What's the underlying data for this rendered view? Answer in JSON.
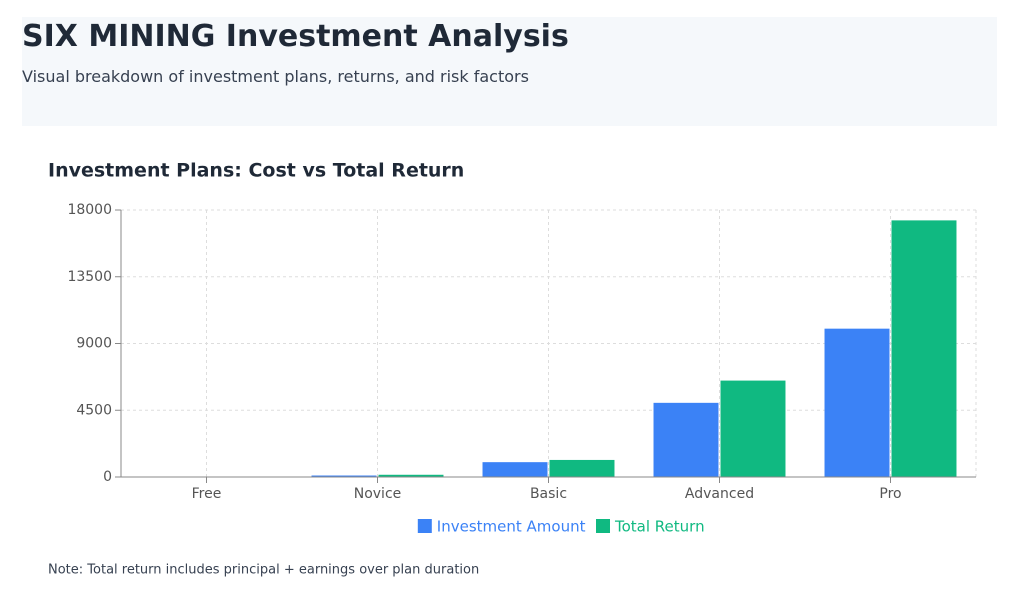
{
  "header": {
    "title": "SIX MINING Investment Analysis",
    "subtitle": "Visual breakdown of investment plans, returns, and risk factors"
  },
  "chart_data": {
    "type": "bar",
    "title": "Investment Plans: Cost vs Total Return",
    "categories": [
      "Free",
      "Novice",
      "Basic",
      "Advanced",
      "Pro"
    ],
    "series": [
      {
        "name": "Investment Amount",
        "color": "#3b82f6",
        "values": [
          0,
          100,
          1000,
          5000,
          10000
        ]
      },
      {
        "name": "Total Return",
        "color": "#10b981",
        "values": [
          10,
          150,
          1150,
          6500,
          17300
        ]
      }
    ],
    "ylim": [
      0,
      18000
    ],
    "yticks": [
      0,
      4500,
      9000,
      13500,
      18000
    ],
    "grid": true,
    "legend": "bottom",
    "note": "Note: Total return includes principal + earnings over plan duration"
  }
}
